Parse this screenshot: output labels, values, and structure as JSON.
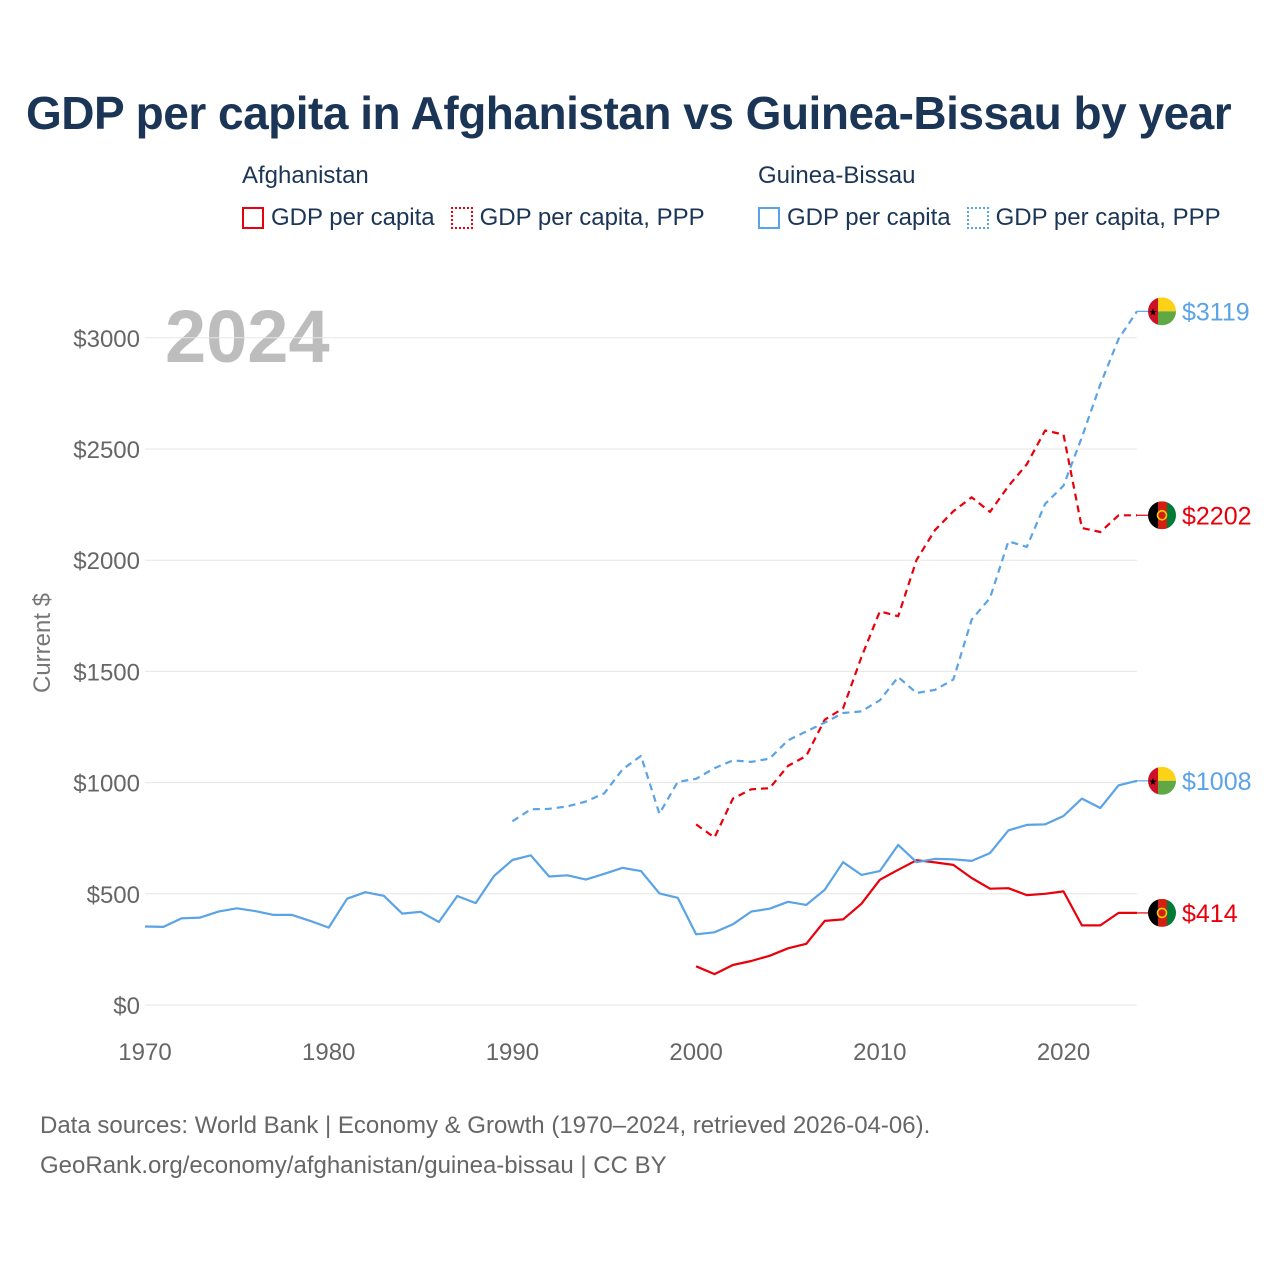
{
  "title": "GDP per capita in Afghanistan vs Guinea-Bissau by year",
  "legend": {
    "afghanistan": {
      "heading": "Afghanistan",
      "gdp": "GDP per capita",
      "ppp": "GDP per capita, PPP",
      "color": "#e8000b"
    },
    "guinea_bissau": {
      "heading": "Guinea-Bissau",
      "gdp": "GDP per capita",
      "ppp": "GDP per capita, PPP",
      "color": "#5aa3e6"
    }
  },
  "footer": {
    "line1": "Data sources: World Bank | Economy & Growth (1970–2024, retrieved 2026-04-06).",
    "line2": "GeoRank.org/economy/afghanistan/guinea-bissau | CC BY"
  },
  "chart_data": {
    "type": "line",
    "title": "GDP per capita in Afghanistan vs Guinea-Bissau by year",
    "xlabel": "",
    "ylabel": "Current $",
    "year_watermark": "2024",
    "xlim": [
      1970,
      2024
    ],
    "ylim": [
      0,
      3200
    ],
    "x_ticks": [
      1970,
      1980,
      1990,
      2000,
      2010,
      2020
    ],
    "y_ticks": [
      {
        "value": 0,
        "label": "$0"
      },
      {
        "value": 500,
        "label": "$500"
      },
      {
        "value": 1000,
        "label": "$1000"
      },
      {
        "value": 1500,
        "label": "$1500"
      },
      {
        "value": 2000,
        "label": "$2000"
      },
      {
        "value": 2500,
        "label": "$2500"
      },
      {
        "value": 3000,
        "label": "$3000"
      }
    ],
    "grid": true,
    "series": [
      {
        "name": "Afghanistan GDP per capita",
        "country": "afghanistan",
        "style": "solid",
        "color": "#e8000b",
        "start_year": 2000,
        "values": [
          174,
          139,
          180,
          198,
          221,
          255,
          275,
          378,
          385,
          455,
          563,
          608,
          651,
          641,
          630,
          571,
          523,
          525,
          494,
          500,
          511,
          358,
          358,
          414,
          414
        ],
        "end_label": "$414"
      },
      {
        "name": "Afghanistan GDP per capita, PPP",
        "country": "afghanistan",
        "style": "dashed",
        "color": "#e8000b",
        "start_year": 2000,
        "values": [
          812,
          753,
          928,
          970,
          975,
          1075,
          1120,
          1283,
          1334,
          1564,
          1770,
          1748,
          2002,
          2135,
          2220,
          2283,
          2217,
          2333,
          2431,
          2583,
          2565,
          2145,
          2127,
          2202,
          2202
        ],
        "end_label": "$2202"
      },
      {
        "name": "Guinea-Bissau GDP per capita",
        "country": "guinea_bissau",
        "style": "solid",
        "color": "#5aa3e6",
        "start_year": 1970,
        "values": [
          353,
          351,
          390,
          393,
          420,
          435,
          422,
          405,
          405,
          378,
          348,
          478,
          507,
          491,
          411,
          419,
          373,
          490,
          458,
          580,
          652,
          673,
          578,
          583,
          564,
          590,
          617,
          602,
          502,
          482,
          318,
          327,
          363,
          420,
          433,
          464,
          450,
          518,
          642,
          585,
          602,
          720,
          642,
          657,
          655,
          648,
          683,
          785,
          810,
          812,
          850,
          928,
          886,
          988,
          1008
        ],
        "end_label": "$1008"
      },
      {
        "name": "Guinea-Bissau GDP per capita, PPP",
        "country": "guinea_bissau",
        "style": "dashed",
        "color": "#5aa3e6",
        "start_year": 1990,
        "values": [
          826,
          880,
          882,
          893,
          915,
          952,
          1060,
          1120,
          860,
          1003,
          1017,
          1065,
          1100,
          1093,
          1108,
          1190,
          1230,
          1270,
          1313,
          1320,
          1370,
          1475,
          1403,
          1417,
          1463,
          1733,
          1830,
          2085,
          2060,
          2253,
          2335,
          2553,
          2790,
          2995,
          3119
        ],
        "end_label": "$3119"
      }
    ]
  }
}
